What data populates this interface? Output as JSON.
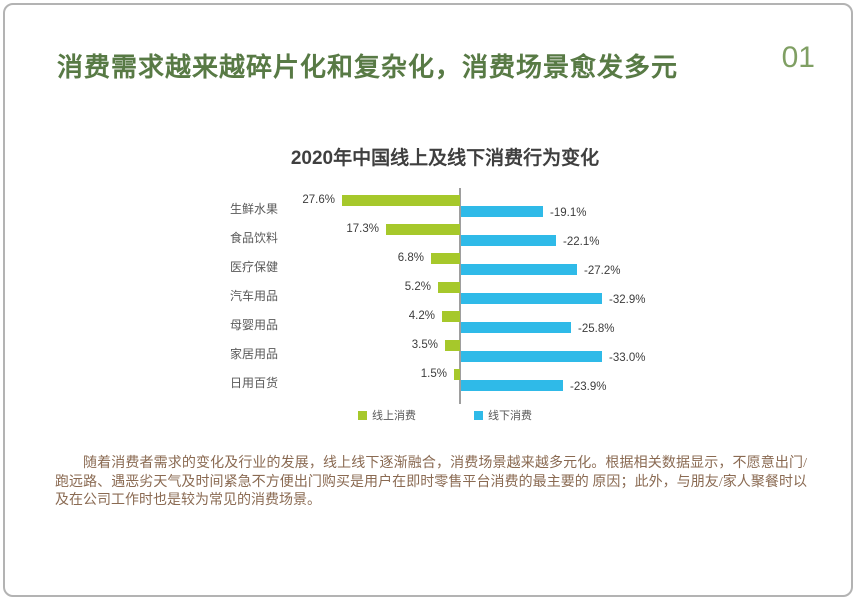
{
  "page": {
    "number": "01",
    "title": "消费需求越来越碎片化和复杂化，消费场景愈发多元"
  },
  "chart_data": {
    "type": "bar",
    "orientation": "horizontal-diverging",
    "title": "2020年中国线上及线下消费行为变化",
    "categories": [
      "生鲜水果",
      "食品饮料",
      "医疗保健",
      "汽车用品",
      "母婴用品",
      "家居用品",
      "日用百货"
    ],
    "series": [
      {
        "name": "线上消费",
        "color": "#a6c82b",
        "values": [
          27.6,
          17.3,
          6.8,
          5.2,
          4.2,
          3.5,
          1.5
        ],
        "labels": [
          "27.6%",
          "17.3%",
          "6.8%",
          "5.2%",
          "4.2%",
          "3.5%",
          "1.5%"
        ]
      },
      {
        "name": "线下消费",
        "color": "#2fbae8",
        "values": [
          -19.1,
          -22.1,
          -27.2,
          -32.9,
          -25.8,
          -33.0,
          -23.9
        ],
        "labels": [
          "-19.1%",
          "-22.1%",
          "-27.2%",
          "-32.9%",
          "-25.8%",
          "-33.0%",
          "-23.9%"
        ]
      }
    ],
    "xlim": [
      -35,
      35
    ],
    "grid": false,
    "legend_position": "bottom"
  },
  "body": {
    "paragraph": "随着消费者需求的变化及行业的发展，线上线下逐渐融合，消费场景越来越多元化。根据相关数据显示，不愿意出门/跑远路、遇恶劣天气及时间紧急不方便出门购买是用户在即时零售平台消费的最主要的 原因；此外，与朋友/家人聚餐时以及在公司工作时也是较为常见的消费场景。"
  },
  "colors": {
    "title_green": "#587a45",
    "page_number_green": "#7f9f63",
    "body_brown": "#8a6a52",
    "axis_gray": "#9e9e9e",
    "label_gray": "#595959",
    "value_gray": "#3d3d3d",
    "border_gray": "#b3b3b3"
  }
}
